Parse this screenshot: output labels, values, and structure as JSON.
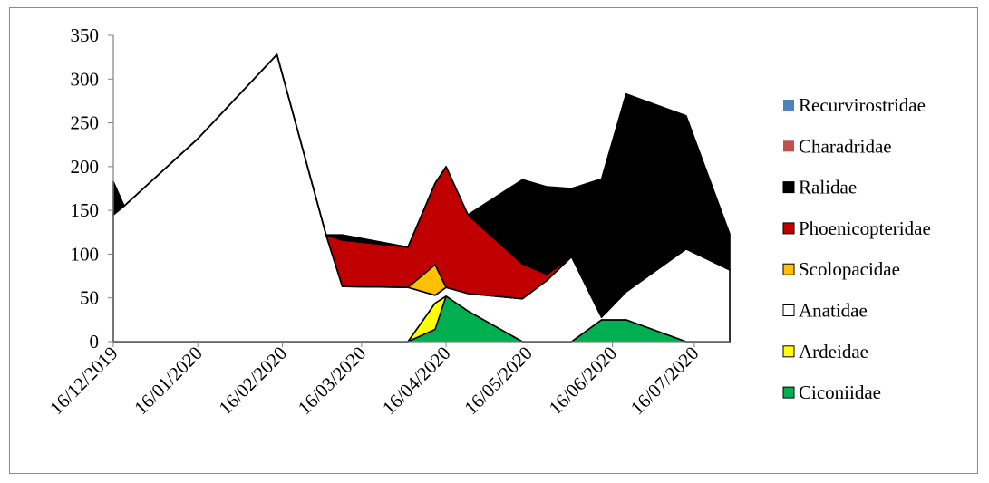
{
  "chart_data": {
    "type": "area",
    "stacked": true,
    "title": "",
    "xlabel": "",
    "ylabel": "",
    "ylim": [
      0,
      350
    ],
    "y_ticks": [
      "0",
      "50",
      "100",
      "150",
      "200",
      "250",
      "300",
      "350"
    ],
    "x_tick_labels": [
      "16/12/2019",
      "16/01/2020",
      "16/02/2020",
      "16/03/2020",
      "16/04/2020",
      "16/05/2020",
      "16/06/2020",
      "16/07/2020"
    ],
    "x_axis": {
      "start": "2019-12-16",
      "end": "2020-07-29"
    },
    "grid": false,
    "legend_position": "right",
    "legend": [
      {
        "name": "Recurvirostridae",
        "color": "#4f81bd"
      },
      {
        "name": "Charadridae",
        "color": "#c0504d"
      },
      {
        "name": "Ralidae",
        "color": "#000000"
      },
      {
        "name": "Phoenicopteridae",
        "color": "#c00000"
      },
      {
        "name": "Scolopacidae",
        "color": "#ffc000"
      },
      {
        "name": "Anatidae",
        "color": "#ffffff"
      },
      {
        "name": "Ardeidae",
        "color": "#ffff00"
      },
      {
        "name": "Ciconiidae",
        "color": "#00b050"
      }
    ],
    "stack_order_bottom_to_top": [
      "Ciconiidae",
      "Ardeidae",
      "Anatidae",
      "Scolopacidae",
      "Phoenicopteridae",
      "Ralidae",
      "Charadridae",
      "Recurvirostridae"
    ],
    "dates": [
      "2019-12-16",
      "2019-12-20",
      "2020-01-16",
      "2020-02-14",
      "2020-03-03",
      "2020-03-09",
      "2020-04-02",
      "2020-04-12",
      "2020-04-16",
      "2020-04-24",
      "2020-05-14",
      "2020-05-23",
      "2020-06-01",
      "2020-06-12",
      "2020-06-21",
      "2020-07-13",
      "2020-07-29"
    ],
    "series": [
      {
        "name": "Ciconiidae",
        "values": [
          0,
          0,
          0,
          0,
          0,
          0,
          0,
          14,
          52,
          35,
          0,
          0,
          0,
          25,
          25,
          0,
          0
        ]
      },
      {
        "name": "Ardeidae",
        "values": [
          0,
          0,
          0,
          0,
          0,
          0,
          0,
          30,
          0,
          0,
          0,
          0,
          0,
          0,
          0,
          0,
          0
        ]
      },
      {
        "name": "Anatidae",
        "values": [
          145,
          155,
          232,
          328,
          122,
          63,
          62,
          9,
          10,
          20,
          49,
          70,
          97,
          3,
          32,
          106,
          82
        ]
      },
      {
        "name": "Scolopacidae",
        "values": [
          0,
          0,
          0,
          0,
          0,
          0,
          0,
          35,
          0,
          0,
          0,
          0,
          0,
          0,
          0,
          0,
          0
        ]
      },
      {
        "name": "Phoenicopteridae",
        "values": [
          0,
          0,
          0,
          0,
          0,
          53,
          46,
          93,
          138,
          90,
          40,
          7,
          0,
          0,
          0,
          0,
          0
        ]
      },
      {
        "name": "Ralidae",
        "values": [
          38,
          0,
          0,
          0,
          0,
          6,
          0,
          0,
          0,
          0,
          96,
          100,
          78,
          158,
          226,
          152,
          41
        ]
      },
      {
        "name": "Charadridae",
        "values": [
          0,
          0,
          0,
          0,
          0,
          0,
          0,
          0,
          0,
          0,
          0,
          0,
          0,
          0,
          0,
          0,
          0
        ]
      },
      {
        "name": "Recurvirostridae",
        "values": [
          0,
          0,
          0,
          0,
          0,
          0,
          0,
          0,
          0,
          0,
          0,
          0,
          0,
          0,
          0,
          0,
          0
        ]
      }
    ]
  }
}
